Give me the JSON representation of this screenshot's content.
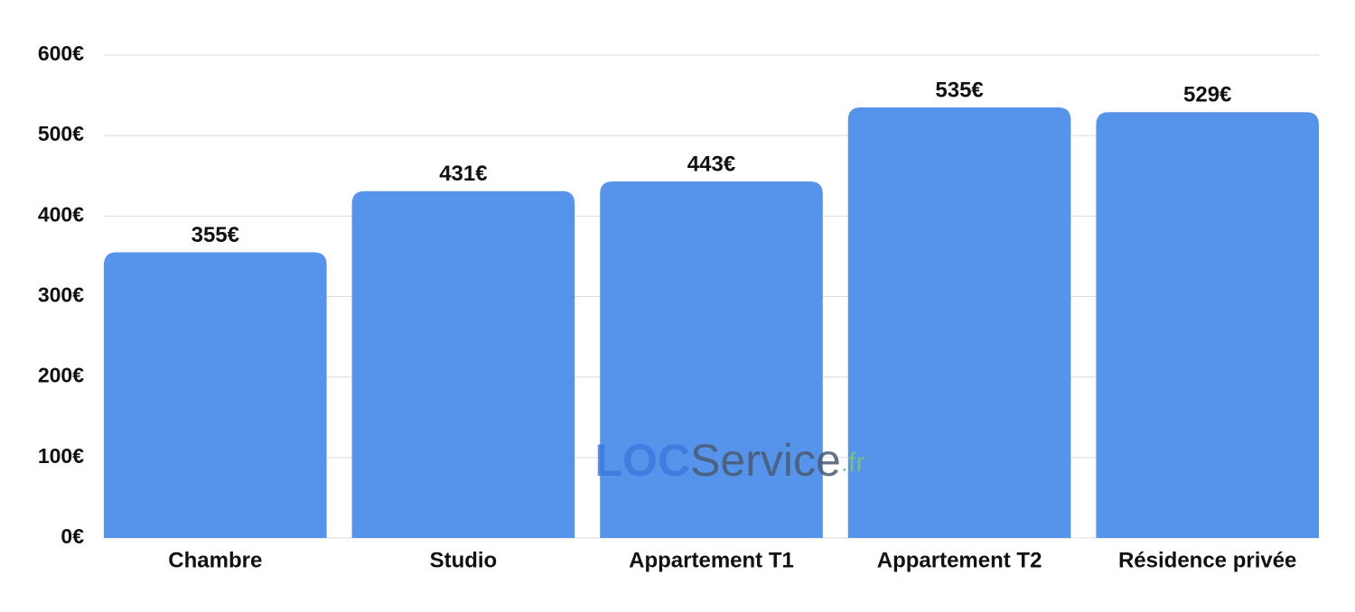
{
  "chart_data": {
    "type": "bar",
    "categories": [
      "Chambre",
      "Studio",
      "Appartement T1",
      "Appartement T2",
      "Résidence privée"
    ],
    "values": [
      355,
      431,
      443,
      535,
      529
    ],
    "value_labels": [
      "355€",
      "431€",
      "443€",
      "535€",
      "529€"
    ],
    "color": "#5594ea",
    "ylim": [
      0,
      600
    ],
    "yticks": [
      {
        "value": 0,
        "label": "0€"
      },
      {
        "value": 100,
        "label": "100€"
      },
      {
        "value": 200,
        "label": "200€"
      },
      {
        "value": 300,
        "label": "300€"
      },
      {
        "value": 400,
        "label": "400€"
      },
      {
        "value": 500,
        "label": "500€"
      },
      {
        "value": 600,
        "label": "600€"
      }
    ],
    "grid": true,
    "watermark": [
      "LOC",
      "Service",
      ".fr"
    ]
  }
}
